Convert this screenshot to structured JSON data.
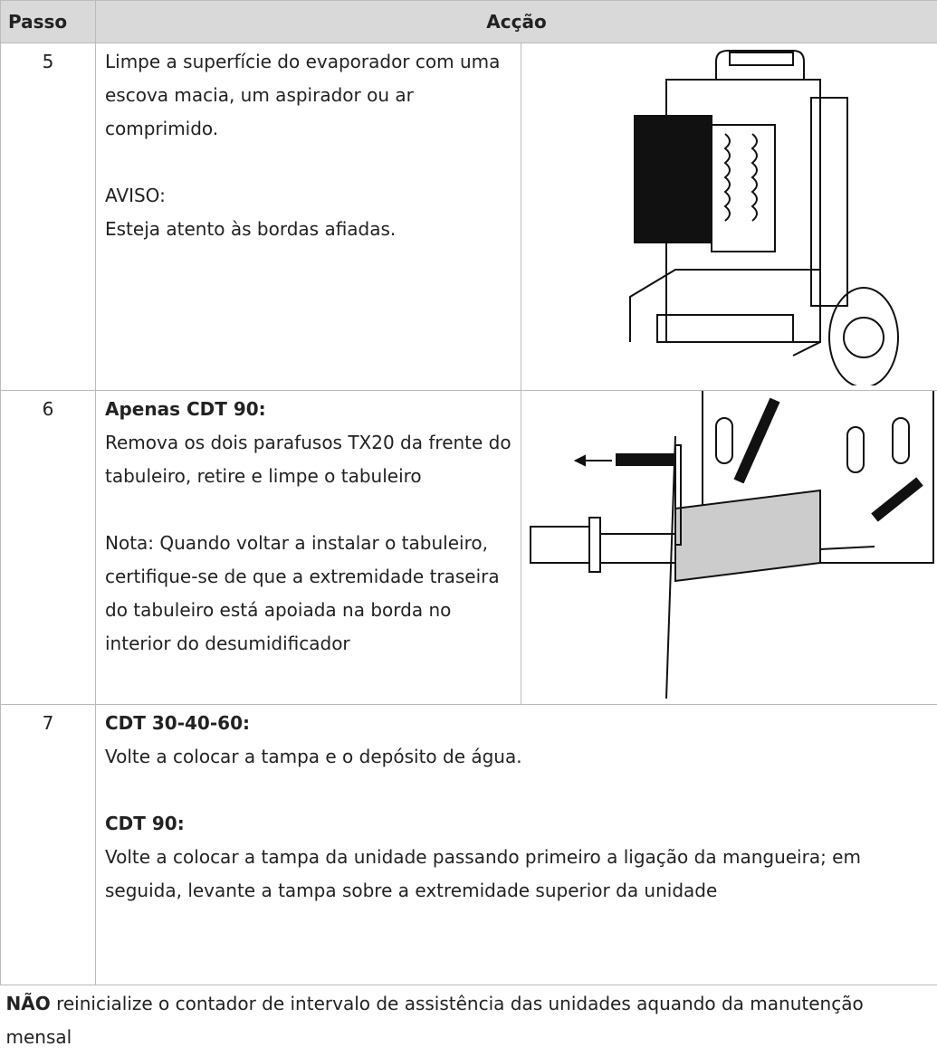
{
  "table": {
    "header": [
      "Passo",
      "Acção"
    ],
    "rows": [
      {
        "step": "5",
        "paragraphs": [
          [
            {
              "text": "Limpe a superfície do evaporador com uma escova macia, um aspirador ou ar comprimido."
            }
          ],
          [
            {
              "text": "AVISO:"
            },
            {
              "text": "Esteja atento às bordas afiadas."
            }
          ]
        ]
      },
      {
        "step": "6",
        "paragraphs": [
          [
            {
              "heading": "Apenas CDT 90:"
            },
            {
              "text": "Remova os dois parafusos TX20 da frente do tabuleiro, retire e limpe o tabuleiro"
            }
          ],
          [
            {
              "text": "Nota: Quando voltar a instalar o tabuleiro, certifique-se de que a extremidade traseira do tabuleiro está apoiada na borda no interior do desumidificador"
            }
          ]
        ]
      },
      {
        "step": "7",
        "paragraphs": [
          [
            {
              "heading": "CDT 30-40-60:"
            },
            {
              "text": "Volte a colocar a tampa e o depósito de água."
            }
          ],
          [
            {
              "heading": "CDT 90:"
            },
            {
              "text": "Volte a colocar a tampa da unidade passando primeiro a ligação da mangueira; em seguida, levante a tampa sobre a extremidade superior da unidade"
            }
          ]
        ]
      }
    ],
    "note": {
      "bold": "NÃO",
      "text": " reinicialize o contador de intervalo de assistência das unidades aquando da manutenção mensal"
    }
  }
}
